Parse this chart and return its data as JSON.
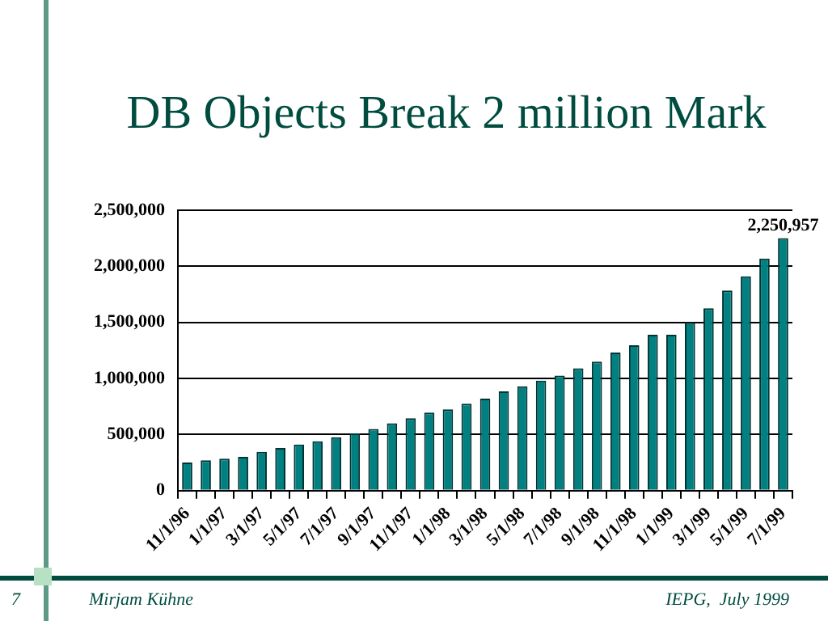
{
  "chart_data": {
    "type": "bar",
    "title": "DB Objects Break 2 million Mark",
    "categories": [
      "11/1/96",
      null,
      "1/1/97",
      null,
      "3/1/97",
      null,
      "5/1/97",
      null,
      "7/1/97",
      null,
      "9/1/97",
      null,
      "11/1/97",
      null,
      "1/1/98",
      null,
      "3/1/98",
      null,
      "5/1/98",
      null,
      "7/1/98",
      null,
      "9/1/98",
      null,
      "11/1/98",
      null,
      "1/1/99",
      null,
      "3/1/99",
      null,
      "5/1/99",
      null,
      "7/1/99"
    ],
    "values": [
      250000,
      270000,
      285000,
      300000,
      345000,
      380000,
      410000,
      440000,
      475000,
      510000,
      550000,
      600000,
      645000,
      695000,
      725000,
      775000,
      820000,
      885000,
      930000,
      980000,
      1025000,
      1090000,
      1150000,
      1230000,
      1295000,
      1390000,
      1390000,
      1500000,
      1625000,
      1785000,
      1910000,
      2070000,
      2250957
    ],
    "value_labels": [
      null,
      null,
      null,
      null,
      null,
      null,
      null,
      null,
      null,
      null,
      null,
      null,
      null,
      null,
      null,
      null,
      null,
      null,
      null,
      null,
      null,
      null,
      null,
      null,
      null,
      null,
      null,
      null,
      null,
      null,
      null,
      null,
      "2,250,957"
    ],
    "color": "#008080",
    "ylim": [
      0,
      2500000
    ],
    "yticks": [
      0,
      {
        "value": 500000,
        "label": "500,000"
      },
      {
        "value": 1000000,
        "label": "1,000,000"
      },
      {
        "value": 1500000,
        "label": "1,500,000"
      },
      {
        "value": 2000000,
        "label": "2,000,000"
      },
      {
        "value": 2500000,
        "label": "2,500,000"
      }
    ],
    "grid": "y",
    "annotations": [
      "7",
      "Mirjam Kühne",
      "IEPG,  July 1999"
    ]
  }
}
